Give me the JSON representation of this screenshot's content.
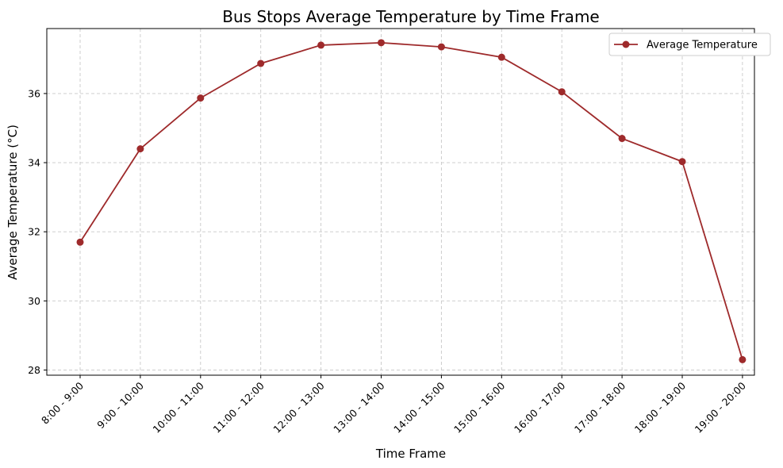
{
  "chart_data": {
    "type": "line",
    "title": "Bus Stops Average Temperature by Time Frame",
    "xlabel": "Time Frame",
    "ylabel": "Average Temperature (°C)",
    "categories": [
      "8:00 - 9:00",
      "9:00 - 10:00",
      "10:00 - 11:00",
      "11:00 - 12:00",
      "12:00 - 13:00",
      "13:00 - 14:00",
      "14:00 - 15:00",
      "15:00 - 16:00",
      "16:00 - 17:00",
      "17:00 - 18:00",
      "18:00 - 19:00",
      "19:00 - 20:00"
    ],
    "series": [
      {
        "name": "Average Temperature",
        "values": [
          31.7,
          34.4,
          35.87,
          36.87,
          37.4,
          37.47,
          37.35,
          37.05,
          36.05,
          34.7,
          34.03,
          28.3
        ],
        "color": "#9e2a2b"
      }
    ],
    "ylim": [
      27.85,
      37.88
    ],
    "yticks": [
      28,
      30,
      32,
      34,
      36
    ],
    "grid": true,
    "legend_position": "top-right"
  }
}
